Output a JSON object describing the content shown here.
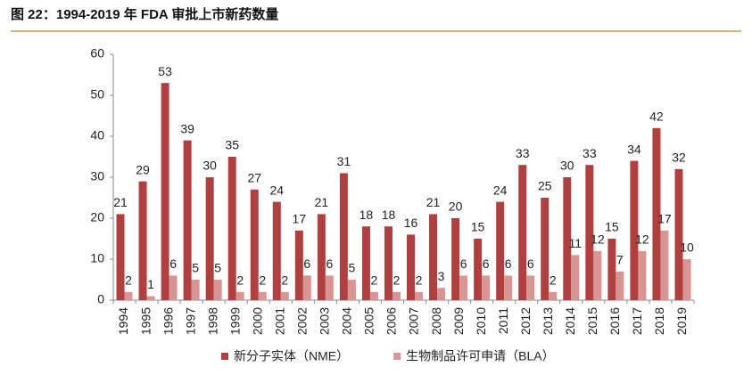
{
  "chart_data": {
    "type": "bar",
    "title": "图 22：1994-2019 年 FDA 审批上市新药数量",
    "categories": [
      "1994",
      "1995",
      "1996",
      "1997",
      "1998",
      "1999",
      "2000",
      "2001",
      "2002",
      "2003",
      "2004",
      "2005",
      "2006",
      "2007",
      "2008",
      "2009",
      "2010",
      "2011",
      "2012",
      "2013",
      "2014",
      "2015",
      "2016",
      "2017",
      "2018",
      "2019"
    ],
    "series": [
      {
        "name": "新分子实体（NME）",
        "color": "#b0403f",
        "values": [
          21,
          29,
          53,
          39,
          30,
          35,
          27,
          24,
          17,
          21,
          31,
          18,
          18,
          16,
          21,
          20,
          15,
          24,
          33,
          25,
          30,
          33,
          15,
          34,
          42,
          32
        ]
      },
      {
        "name": "生物制品许可申请（BLA）",
        "color": "#d99594",
        "values": [
          2,
          1,
          6,
          5,
          5,
          2,
          2,
          2,
          6,
          6,
          5,
          2,
          2,
          2,
          3,
          6,
          6,
          6,
          6,
          2,
          11,
          12,
          7,
          12,
          17,
          10
        ]
      }
    ],
    "ylim": [
      0,
      60
    ],
    "yticks": [
      0,
      10,
      20,
      30,
      40,
      50,
      60
    ],
    "grid": false,
    "legend": "bottom"
  }
}
